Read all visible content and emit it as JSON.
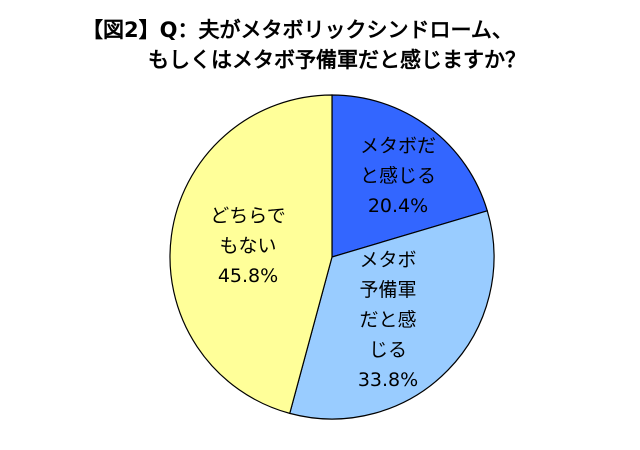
{
  "title": {
    "line1": "【図2】Q：夫がメタボリックシンドローム、",
    "line2": "もしくはメタボ予備軍だと感じますか？"
  },
  "chart_data": {
    "type": "pie",
    "title": "【図2】Q：夫がメタボリックシンドローム、もしくはメタボ予備軍だと感じますか？",
    "start": "12 o'clock, clockwise",
    "slices": [
      {
        "label_lines": [
          "メタボだ",
          "と感じる"
        ],
        "value": 20.4,
        "value_label": "20.4%",
        "color": "#3366ff"
      },
      {
        "label_lines": [
          "メタボ",
          "予備軍",
          "だと感",
          "じる"
        ],
        "value": 33.8,
        "value_label": "33.8%",
        "color": "#99ccff"
      },
      {
        "label_lines": [
          "どちらで",
          "もない"
        ],
        "value": 45.8,
        "value_label": "45.8%",
        "color": "#ffff99"
      }
    ]
  }
}
